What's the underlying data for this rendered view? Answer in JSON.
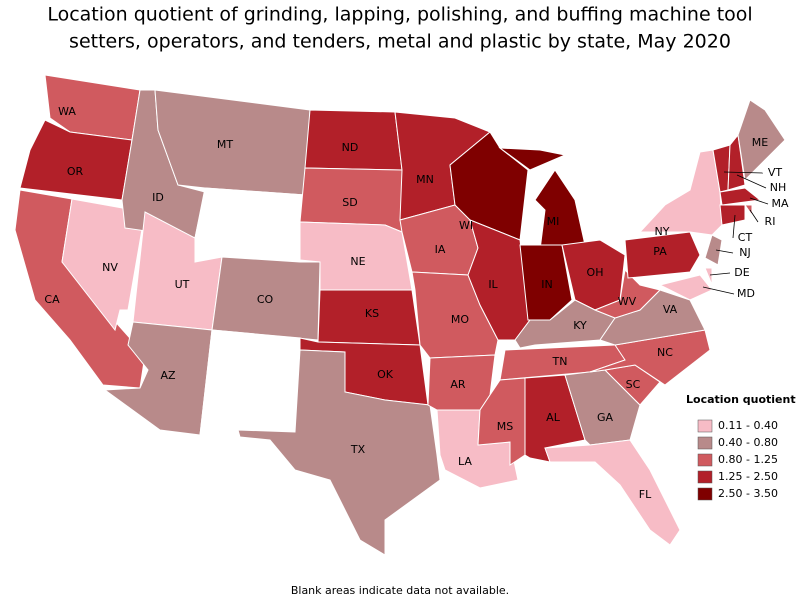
{
  "title": [
    "Location quotient of grinding, lapping, polishing, and buffing machine tool",
    "setters, operators, and tenders, metal and plastic by state, May 2020"
  ],
  "states": [
    {
      "label": "WA",
      "color": "#d05a5f"
    },
    {
      "label": "OR",
      "color": "#b22029"
    },
    {
      "label": "CA",
      "color": "#d05a5f"
    },
    {
      "label": "NV",
      "color": "#f7bcc6"
    },
    {
      "label": "ID",
      "color": "#b88a8a"
    },
    {
      "label": "MT",
      "color": "#b88a8a"
    },
    {
      "label": null,
      "color": "#ffffff"
    },
    {
      "label": "UT",
      "color": "#f7bcc6"
    },
    {
      "label": "CO",
      "color": "#b88a8a"
    },
    {
      "label": "AZ",
      "color": "#b88a8a"
    },
    {
      "label": null,
      "color": "#ffffff"
    },
    {
      "label": "ND",
      "color": "#b22029"
    },
    {
      "label": "SD",
      "color": "#d05a5f"
    },
    {
      "label": "NE",
      "color": "#f7bcc6"
    },
    {
      "label": "KS",
      "color": "#b22029"
    },
    {
      "label": "OK",
      "color": "#b22029"
    },
    {
      "label": "TX",
      "color": "#b88a8a"
    },
    {
      "label": "MN",
      "color": "#b22029"
    },
    {
      "label": "IA",
      "color": "#d05a5f"
    },
    {
      "label": "MO",
      "color": "#d05a5f"
    },
    {
      "label": "AR",
      "color": "#d05a5f"
    },
    {
      "label": "LA",
      "color": "#f7bcc6"
    },
    {
      "label": "WI",
      "color": "#7f0000"
    },
    {
      "label": "IL",
      "color": "#b22029"
    },
    {
      "label": "MI",
      "color": "#7f0000"
    },
    {
      "label": "IN",
      "color": "#7f0000"
    },
    {
      "label": "OH",
      "color": "#b22029"
    },
    {
      "label": "KY",
      "color": "#b88a8a"
    },
    {
      "label": "TN",
      "color": "#d05a5f"
    },
    {
      "label": "MS",
      "color": "#d05a5f"
    },
    {
      "label": "AL",
      "color": "#b22029"
    },
    {
      "label": "GA",
      "color": "#b88a8a"
    },
    {
      "label": "FL",
      "color": "#f7bcc6"
    },
    {
      "label": "SC",
      "color": "#d05a5f"
    },
    {
      "label": "NC",
      "color": "#d05a5f"
    },
    {
      "label": "VA",
      "color": "#b88a8a"
    },
    {
      "label": "WV",
      "color": "#d05a5f"
    },
    {
      "label": "PA",
      "color": "#b22029"
    },
    {
      "label": "NY",
      "color": "#f7bcc6"
    },
    {
      "label": "VT",
      "color": "#b22029"
    },
    {
      "label": "NH",
      "color": "#b22029"
    },
    {
      "label": "ME",
      "color": "#b88a8a"
    },
    {
      "label": "MA",
      "color": "#b22029"
    },
    {
      "label": "RI",
      "color": "#d05a5f"
    },
    {
      "label": "CT",
      "color": "#b22029"
    },
    {
      "label": "NJ",
      "color": "#b88a8a"
    },
    {
      "label": "DE",
      "color": "#f7bcc6"
    },
    {
      "label": "MD",
      "color": "#f7bcc6"
    },
    {
      "label": null,
      "color": "#ffffff"
    },
    {
      "label": null,
      "color": "#ffffff"
    },
    {
      "label": null,
      "color": "#ffffff"
    }
  ],
  "legend": {
    "title": "Location quotient",
    "items": [
      {
        "label": "0.11 - 0.40",
        "color": "#f7bcc6"
      },
      {
        "label": "0.40 - 0.80",
        "color": "#b88a8a"
      },
      {
        "label": "0.80 - 1.25",
        "color": "#d05a5f"
      },
      {
        "label": "1.25 - 2.50",
        "color": "#b22029"
      },
      {
        "label": "2.50 - 3.50",
        "color": "#7f0000"
      }
    ]
  },
  "note": "Blank areas indicate data not available."
}
